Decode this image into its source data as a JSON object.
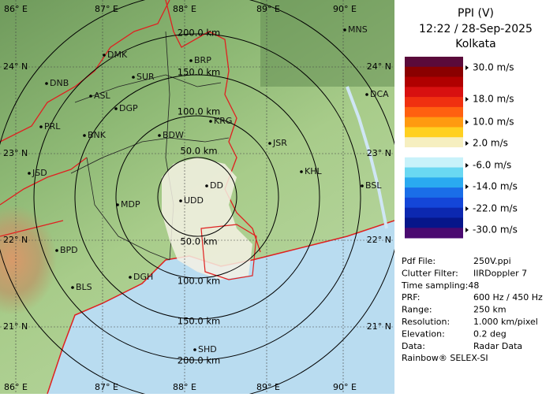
{
  "header": {
    "title": "PPI (V)",
    "time": "12:22 / 28-Sep-2025",
    "site": "Kolkata"
  },
  "map": {
    "lon_labels": [
      "86° E",
      "87° E",
      "88° E",
      "89° E",
      "90° E"
    ],
    "lat_labels": [
      "24° N",
      "23° N",
      "22° N",
      "21° N"
    ],
    "range_labels": [
      "200.0 km",
      "150.0 km",
      "100.0 km",
      "50.0 km",
      "50.0 km",
      "100.0 km",
      "150.0 km",
      "200.0 km"
    ],
    "stations": [
      "MNS",
      "DMK",
      "BRP",
      "SUR",
      "DNB",
      "ASL",
      "DGP",
      "DCA",
      "KRG",
      "PRL",
      "BNK",
      "BDW",
      "JSR",
      "KHL",
      "JSD",
      "DD",
      "BSL",
      "MDP",
      "UDD",
      "BPD",
      "DGH",
      "BLS",
      "SHD"
    ]
  },
  "legend": {
    "labels": [
      "30.0 m/s",
      "18.0 m/s",
      "10.0 m/s",
      "2.0 m/s",
      "-6.0 m/s",
      "-14.0 m/s",
      "-22.0 m/s",
      "-30.0 m/s"
    ]
  },
  "info": {
    "rows": [
      [
        "Pdf File:",
        "250V.ppi"
      ],
      [
        "Clutter Filter:",
        "IIRDoppler 7"
      ],
      [
        "Time sampling:48"
      ],
      [
        "PRF:",
        "600 Hz / 450 Hz"
      ],
      [
        "Range:",
        "250 km"
      ],
      [
        "Resolution:",
        "1.000 km/pixel"
      ],
      [
        "Elevation:",
        "0.2 deg"
      ],
      [
        "Data:",
        "Radar Data"
      ]
    ],
    "footer": "Rainbow® SELEX-SI"
  }
}
